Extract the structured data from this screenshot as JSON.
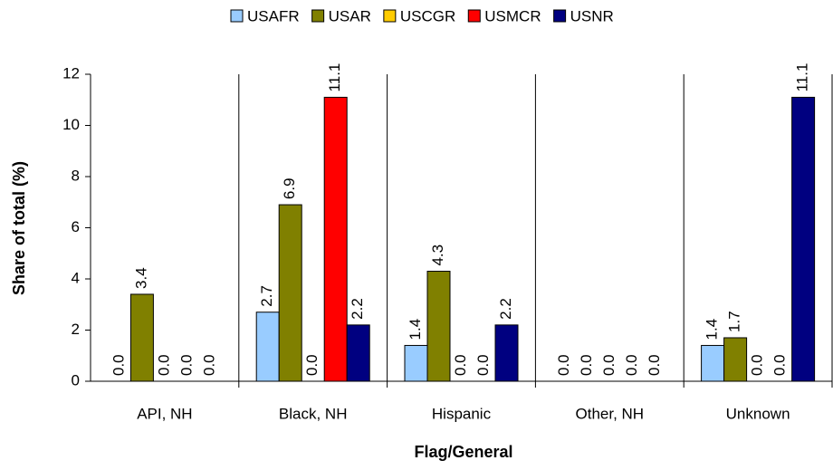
{
  "chart_data": {
    "type": "bar",
    "x_label": "Flag/General",
    "y_label": "Share of total (%)",
    "categories": [
      "API, NH",
      "Black, NH",
      "Hispanic",
      "Other, NH",
      "Unknown"
    ],
    "series": [
      {
        "name": "USAFR",
        "color": "#99ccff",
        "values": [
          0,
          2.7,
          1.4,
          0,
          1.4
        ],
        "value_labels": [
          "0.0",
          "2.7",
          "1.4",
          "0.0",
          "1.4"
        ]
      },
      {
        "name": "USAR",
        "color": "#808000",
        "values": [
          3.4,
          6.9,
          4.3,
          0,
          1.7
        ],
        "value_labels": [
          "3.4",
          "6.9",
          "4.3",
          "0.0",
          "1.7"
        ]
      },
      {
        "name": "USCGR",
        "color": "#ffcc00",
        "values": [
          0,
          0,
          0,
          0,
          0
        ],
        "value_labels": [
          "0.0",
          "0.0",
          "0.0",
          "0.0",
          "0.0"
        ]
      },
      {
        "name": "USMCR",
        "color": "#ff0000",
        "values": [
          0,
          11.1,
          0,
          0,
          0
        ],
        "value_labels": [
          "0.0",
          "11.1",
          "0.0",
          "0.0",
          "0.0"
        ]
      },
      {
        "name": "USNR",
        "color": "#000080",
        "values": [
          0,
          2.2,
          2.2,
          0,
          11.1
        ],
        "value_labels": [
          "0.0",
          "2.2",
          "2.2",
          "0.0",
          "11.1"
        ]
      }
    ],
    "ylim": [
      0,
      12
    ],
    "yticks": [
      0,
      2,
      4,
      6,
      8,
      10,
      12
    ],
    "grid": false,
    "legend": "top"
  }
}
